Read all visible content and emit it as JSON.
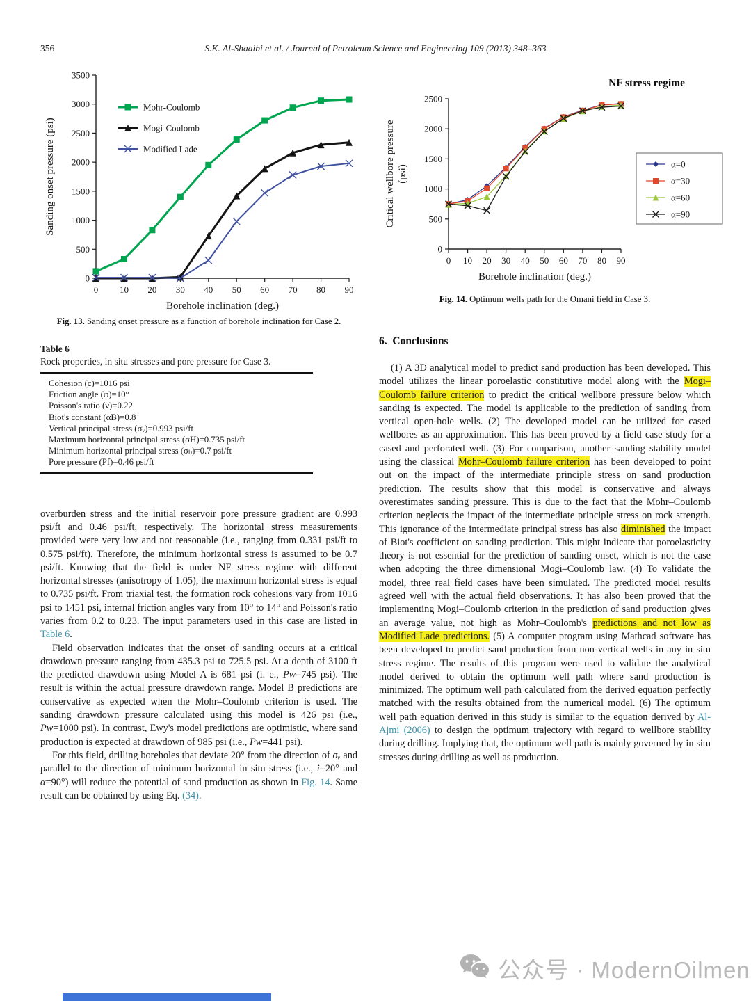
{
  "page": {
    "page_number": "356",
    "running_head": "S.K. Al-Shaaibi et al. / Journal of Petroleum Science and Engineering 109 (2013) 348–363"
  },
  "colors": {
    "link_teal": "#3e93ad",
    "highlight_yellow": "#f8ee1b",
    "watermark_gray": "#b9b9b9",
    "footer_bar_blue": "#3e74d8",
    "mohr_green": "#00a550",
    "mogi_black": "#141414",
    "lade_blue": "#3f51a0",
    "alpha0_navy": "#2b3a8f",
    "alpha30_red": "#e0492e",
    "alpha60_green": "#9cc83c",
    "alpha90_black": "#1c1c1c"
  },
  "chart_data": [
    {
      "type": "line",
      "fig": "Fig. 13",
      "title": "",
      "x": [
        0,
        10,
        20,
        30,
        40,
        50,
        60,
        70,
        80,
        90
      ],
      "xlabel": "Borehole inclination (deg.)",
      "ylabel": "Sanding onset pressure (psi)",
      "xlim": [
        0,
        90
      ],
      "ylim": [
        0,
        3500
      ],
      "xtick": 10,
      "ytick": 500,
      "grid": false,
      "legend_position": "inside-top-left",
      "series": [
        {
          "name": "Mohr-Coulomb",
          "color": "#00a550",
          "marker": "square",
          "values": [
            120,
            330,
            830,
            1400,
            1950,
            2390,
            2720,
            2940,
            3060,
            3080
          ]
        },
        {
          "name": "Mogi-Coulomb",
          "color": "#141414",
          "marker": "triangle",
          "values": [
            0,
            0,
            0,
            20,
            730,
            1420,
            1890,
            2160,
            2300,
            2340
          ]
        },
        {
          "name": "Modified Lade",
          "color": "#3f51a0",
          "marker": "x",
          "values": [
            10,
            10,
            10,
            0,
            310,
            980,
            1470,
            1780,
            1930,
            1980
          ]
        }
      ]
    },
    {
      "type": "line",
      "fig": "Fig. 14",
      "title": "NF stress regime",
      "x": [
        0,
        10,
        20,
        30,
        40,
        50,
        60,
        70,
        80,
        90
      ],
      "xlabel": "Borehole inclination (deg.)",
      "ylabel": "Critical wellbore pressure\n(psi)",
      "xlim": [
        0,
        90
      ],
      "ylim": [
        0,
        2500
      ],
      "xtick": 10,
      "ytick": 500,
      "grid": false,
      "legend_position": "outside-right-box",
      "series": [
        {
          "name": "α=0",
          "color": "#2b3a8f",
          "marker": "diamond",
          "values": [
            750,
            820,
            1050,
            1360,
            1700,
            2010,
            2200,
            2310,
            2400,
            2420
          ]
        },
        {
          "name": "α=30",
          "color": "#e0492e",
          "marker": "square",
          "values": [
            750,
            800,
            1010,
            1340,
            1690,
            2000,
            2195,
            2305,
            2395,
            2415
          ]
        },
        {
          "name": "α=60",
          "color": "#9cc83c",
          "marker": "triangle",
          "values": [
            740,
            760,
            870,
            1220,
            1630,
            1960,
            2170,
            2295,
            2370,
            2395
          ]
        },
        {
          "name": "α=90",
          "color": "#1c1c1c",
          "marker": "x",
          "values": [
            750,
            720,
            640,
            1210,
            1620,
            1955,
            2175,
            2300,
            2360,
            2380
          ]
        }
      ]
    }
  ],
  "figures": {
    "fig13": {
      "label": "Fig. 13.",
      "text": "Sanding onset pressure as a function of borehole inclination for Case 2."
    },
    "fig14": {
      "label": "Fig. 14.",
      "text": "Optimum wells path for the Omani field in Case 3."
    }
  },
  "table6": {
    "label": "Table 6",
    "caption": "Rock properties, in situ stresses and pore pressure for Case 3.",
    "rows": [
      "Cohesion (c)=1016 psi",
      "Friction angle (φ)=10°",
      "Poisson's ratio (ν)=0.22",
      "Biot's constant (αB)=0.8",
      "Vertical principal stress (σᵥ)=0.993 psi/ft",
      "Maximum horizontal principal stress (σH)=0.735 psi/ft",
      "Minimum horizontal principal stress (σₕ)=0.7 psi/ft",
      "Pore pressure (Pf)=0.46 psi/ft"
    ]
  },
  "left_column": {
    "p1": [
      {
        "t": "overburden stress and the initial reservoir pore pressure gradient are 0.993 psi/ft and 0.46 psi/ft, respectively. The horizontal stress measurements provided were very low and not reasonable (i.e., ranging from 0.331 psi/ft to 0.575 psi/ft). Therefore, the minimum horizontal stress is assumed to be 0.7 psi/ft. Knowing that the field is under NF stress regime with different horizontal stresses (anisotropy of 1.05), the maximum horizontal stress is equal to 0.735 psi/ft. From triaxial test, the formation rock cohesions vary from 1016 psi to 1451 psi, internal friction angles vary from 10° to 14° and Poisson's ratio varies from 0.2 to 0.23. The input parameters used in this case are listed in "
      },
      {
        "t": "Table 6",
        "s": "link"
      },
      {
        "t": "."
      }
    ],
    "p2": [
      {
        "t": "Field observation indicates that the onset of sanding occurs at a critical drawdown pressure ranging from 435.3 psi to 725.5 psi. At a depth of 3100 ft the predicted drawdown using Model A is 681 psi (i. e., "
      },
      {
        "t": "Pw",
        "s": "it"
      },
      {
        "t": "=745 psi). The result is within the actual pressure drawdown range. Model B predictions are conservative as expected when the Mohr–Coulomb criterion is used. The sanding drawdown pressure calculated using this model is 426 psi (i.e., "
      },
      {
        "t": "Pw",
        "s": "it"
      },
      {
        "t": "=1000 psi). In contrast, Ewy's model predictions are optimistic, where sand production is expected at drawdown of 985 psi (i.e., "
      },
      {
        "t": "Pw",
        "s": "it"
      },
      {
        "t": "=441 psi)."
      }
    ],
    "p3": [
      {
        "t": "For this field, drilling boreholes that deviate 20° from the direction of "
      },
      {
        "t": "σᵥ",
        "s": "it"
      },
      {
        "t": " and parallel to the direction of minimum horizontal in situ stress (i.e., "
      },
      {
        "t": "i",
        "s": "it"
      },
      {
        "t": "=20° and "
      },
      {
        "t": "α",
        "s": "it"
      },
      {
        "t": "=90°) will reduce the potential of sand production as shown in "
      },
      {
        "t": "Fig. 14",
        "s": "link"
      },
      {
        "t": ". Same result can be obtained by using Eq. "
      },
      {
        "t": "(34)",
        "s": "link"
      },
      {
        "t": "."
      }
    ]
  },
  "conclusions": {
    "heading": "6.  Conclusions",
    "p1": [
      {
        "t": "(1) A 3D analytical model to predict sand production has been developed. This model utilizes the linear poroelastic constitutive model along with the "
      },
      {
        "t": "Mogi–Coulomb failure criterion",
        "s": "hl"
      },
      {
        "t": " to predict the critical wellbore pressure below which sanding is expected. The model is applicable to the prediction of sanding from vertical open-hole wells. (2) The developed model can be utilized for cased wellbores as an approximation. This has been proved by a field case study for a cased and perforated well. (3) For comparison, another sanding stability model using the classical "
      },
      {
        "t": "Mohr–Coulomb failure criterion",
        "s": "hl"
      },
      {
        "t": " has been developed to point out on the impact of the intermediate principle stress on sand production prediction. The results show that this model is conservative and always overestimates sanding pressure. This is due to the fact that the Mohr–Coulomb criterion neglects the impact of the intermediate principle stress on rock strength. This ignorance of the intermediate principal stress has also "
      },
      {
        "t": "diminished",
        "s": "hl"
      },
      {
        "t": " the impact of Biot's coefficient on sanding prediction. This might indicate that poroelasticity theory is not essential for the prediction of sanding onset, which is not the case when adopting the three dimensional Mogi–Coulomb law. (4) To validate the model, three real field cases have been simulated. The predicted model results agreed well with the actual field observations. It has also been proved that the implementing Mogi–Coulomb criterion in the prediction of sand production gives an average value, not high as Mohr–Coulomb's "
      },
      {
        "t": "predictions and not low as Modified Lade predictions.",
        "s": "hl"
      },
      {
        "t": " (5) A computer program using Mathcad software has been developed to predict sand production from non-vertical wells in any in situ stress regime. The results of this program were used to validate the analytical model derived to obtain the optimum well path where sand production is minimized. The optimum well path calculated from the derived equation perfectly matched with the results obtained from the numerical model. (6) The optimum well path equation derived in this study is similar to the equation derived by "
      },
      {
        "t": "Al-Ajmi (2006)",
        "s": "link"
      },
      {
        "t": " to design the optimum trajectory with regard to wellbore stability during drilling. Implying that, the optimum well path is mainly governed by in situ stresses during drilling as well as production."
      }
    ]
  },
  "watermark": {
    "text": "公众号 · ModernOilmen",
    "icon": "wechat-icon"
  }
}
